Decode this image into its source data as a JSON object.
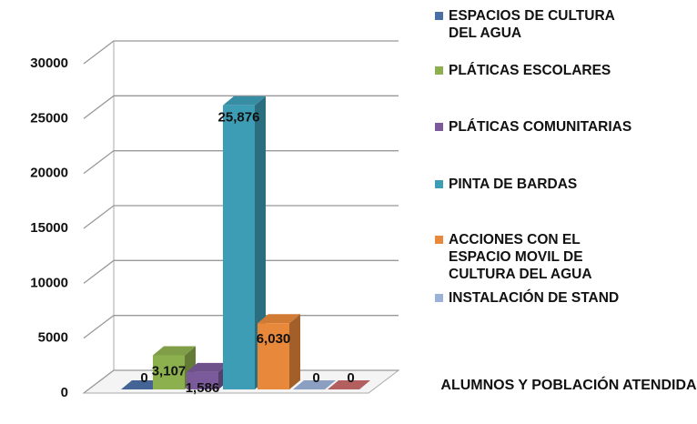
{
  "chart_data": {
    "type": "bar3d",
    "title": "ALUMNOS Y POBLACIÓN ATENDIDA",
    "series": [
      {
        "name": "ESPACIOS DE CULTURA DEL AGUA",
        "color": "#4a6fa5",
        "values": [
          0
        ],
        "value_labels": [
          "0"
        ]
      },
      {
        "name": "PLÁTICAS ESCOLARES",
        "color": "#8db04f",
        "values": [
          3107
        ],
        "value_labels": [
          "3,107"
        ]
      },
      {
        "name": "PLÁTICAS COMUNITARIAS",
        "color": "#7a5a9a",
        "values": [
          1586
        ],
        "value_labels": [
          "1,586"
        ]
      },
      {
        "name": "PINTA DE BARDAS",
        "color": "#3d9db5",
        "values": [
          25876
        ],
        "value_labels": [
          "25,876"
        ]
      },
      {
        "name": "ACCIONES CON EL ESPACIO MOVIL DE CULTURA DEL AGUA",
        "color": "#e8883a",
        "values": [
          6030
        ],
        "value_labels": [
          "6,030"
        ]
      },
      {
        "name": "INSTALACIÓN DE STAND",
        "color": "#9ab1d8",
        "values": [
          0
        ],
        "value_labels": [
          "0"
        ]
      },
      {
        "name": null,
        "color": "#c86a6a",
        "values": [
          0
        ],
        "value_labels": [
          "0"
        ]
      }
    ],
    "ylim": [
      0,
      30000
    ],
    "yticks": [
      0,
      5000,
      10000,
      15000,
      20000,
      25000,
      30000
    ],
    "grid": true
  }
}
